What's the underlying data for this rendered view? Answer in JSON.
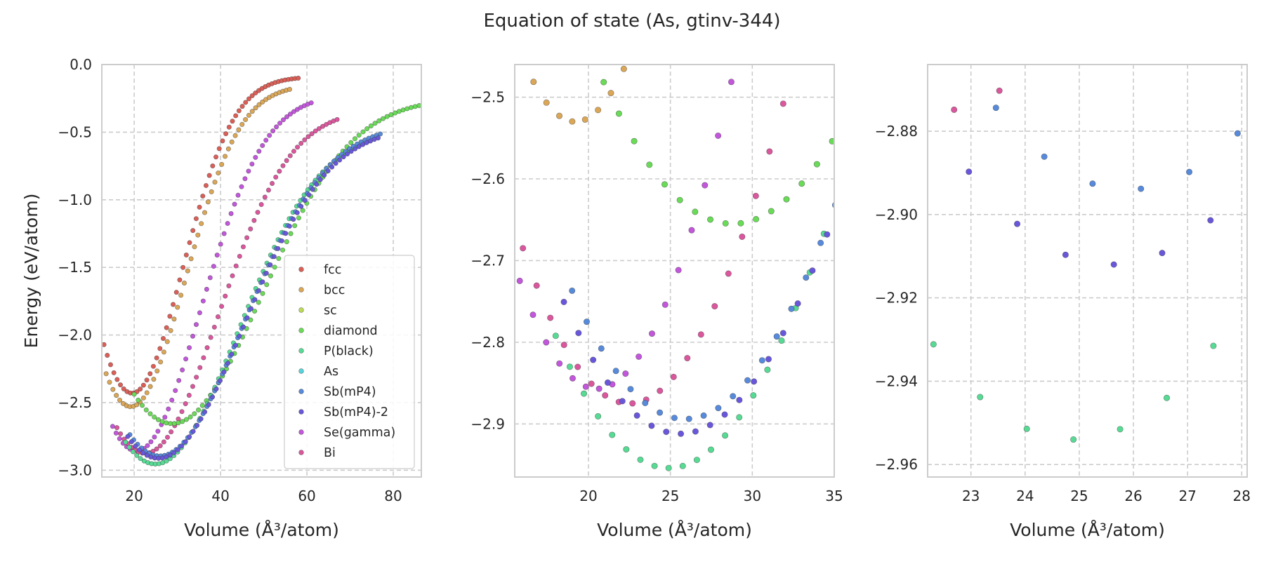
{
  "figure": {
    "title": "Equation of state (As, gtinv-344)"
  },
  "colors": {
    "fcc": "#db5f57",
    "bcc": "#dba757",
    "sc": "#bbdb57",
    "diamond": "#69db57",
    "P(black)": "#57db94",
    "As": "#57d3db",
    "Sb(mP4)": "#578adb",
    "Sb(mP4)-2": "#6957db",
    "Se(gamma)": "#c257db",
    "Bi": "#db579d",
    "grid": "#cccccc",
    "spine": "#cccccc"
  },
  "chart_data": [
    {
      "type": "scatter",
      "title": "",
      "xlabel": "Volume (Å³/atom)",
      "ylabel": "Energy (eV/atom)",
      "xlim": [
        12.5,
        86.5
      ],
      "ylim": [
        -3.05,
        0.0
      ],
      "xticks": [
        20,
        40,
        60,
        80
      ],
      "yticks": [
        0.0,
        -0.5,
        -1.0,
        -1.5,
        -2.0,
        -2.5,
        -3.0
      ],
      "xticklabels": [
        "20",
        "40",
        "60",
        "80"
      ],
      "yticklabels": [
        "0.0",
        "−0.5",
        "−1.0",
        "−1.5",
        "−2.0",
        "−2.5",
        "−3.0"
      ],
      "grid": true,
      "legend": {
        "position": "lower-right",
        "entries": [
          "fcc",
          "bcc",
          "sc",
          "diamond",
          "P(black)",
          "As",
          "Sb(mP4)",
          "Sb(mP4)-2",
          "Se(gamma)",
          "Bi"
        ]
      },
      "series": [
        {
          "name": "fcc",
          "curve": {
            "v0": 19.5,
            "e0": -2.43,
            "b": 0.0085,
            "vmin": 13.0,
            "vmax": 58.0,
            "n": 60,
            "ecap": -0.09
          }
        },
        {
          "name": "bcc",
          "curve": {
            "v0": 19.2,
            "e0": -2.53,
            "b": 0.0075,
            "vmin": 13.5,
            "vmax": 56.0,
            "n": 55,
            "ecap": -0.15
          }
        },
        {
          "name": "Se(gamma)",
          "curve": {
            "v0": 20.5,
            "e0": -2.857,
            "b": 0.006,
            "vmin": 15.0,
            "vmax": 61.0,
            "n": 58,
            "ecap": -0.22
          }
        },
        {
          "name": "Bi",
          "curve": {
            "v0": 22.5,
            "e0": -2.875,
            "b": 0.0045,
            "vmin": 16.0,
            "vmax": 67.0,
            "n": 62,
            "ecap": -0.33
          }
        },
        {
          "name": "diamond",
          "curve": {
            "v0": 28.8,
            "e0": -2.655,
            "b": 0.0028,
            "vmin": 20.0,
            "vmax": 86.0,
            "n": 72,
            "ecap": -0.25
          }
        },
        {
          "name": "P(black)",
          "curve": {
            "v0": 24.9,
            "e0": -2.954,
            "b": 0.0034,
            "vmin": 18.0,
            "vmax": 74.0,
            "n": 66,
            "ecap": -0.48
          }
        },
        {
          "name": "Sb(mP4)",
          "curve": {
            "v0": 25.9,
            "e0": -2.894,
            "b": 0.0033,
            "vmin": 19.0,
            "vmax": 77.0,
            "n": 66,
            "ecap": -0.44
          }
        },
        {
          "name": "Sb(mP4)-2",
          "curve": {
            "v0": 25.6,
            "e0": -2.912,
            "b": 0.0032,
            "vmin": 18.5,
            "vmax": 76.5,
            "n": 66,
            "ecap": -0.46
          }
        }
      ]
    },
    {
      "type": "scatter",
      "title": "",
      "xlabel": "Volume (Å³/atom)",
      "ylabel": "",
      "xlim": [
        15.5,
        35.0
      ],
      "ylim": [
        -2.965,
        -2.46
      ],
      "xticks": [
        20,
        25,
        30,
        35
      ],
      "yticks": [
        -2.5,
        -2.6,
        -2.7,
        -2.8,
        -2.9
      ],
      "xticklabels": [
        "20",
        "25",
        "30",
        "35"
      ],
      "yticklabels": [
        "−2.5",
        "−2.6",
        "−2.7",
        "−2.8",
        "−2.9"
      ],
      "grid": true,
      "series": [
        {
          "name": "bcc",
          "curve": {
            "v0": 19.2,
            "e0": -2.53,
            "b": 0.0075,
            "vmin": 13.5,
            "vmax": 56.0,
            "n": 55,
            "ecap": -0.15
          }
        },
        {
          "name": "Se(gamma)",
          "curve": {
            "v0": 20.5,
            "e0": -2.857,
            "b": 0.006,
            "vmin": 15.0,
            "vmax": 61.0,
            "n": 58,
            "ecap": -0.22
          }
        },
        {
          "name": "Bi",
          "curve": {
            "v0": 22.5,
            "e0": -2.875,
            "b": 0.0045,
            "vmin": 16.0,
            "vmax": 67.0,
            "n": 62,
            "ecap": -0.33
          }
        },
        {
          "name": "diamond",
          "curve": {
            "v0": 28.8,
            "e0": -2.655,
            "b": 0.0028,
            "vmin": 20.0,
            "vmax": 86.0,
            "n": 72,
            "ecap": -0.25
          }
        },
        {
          "name": "P(black)",
          "curve": {
            "v0": 24.9,
            "e0": -2.954,
            "b": 0.0034,
            "vmin": 18.0,
            "vmax": 74.0,
            "n": 66,
            "ecap": -0.48
          }
        },
        {
          "name": "Sb(mP4)",
          "curve": {
            "v0": 25.9,
            "e0": -2.894,
            "b": 0.0033,
            "vmin": 19.0,
            "vmax": 77.0,
            "n": 66,
            "ecap": -0.44
          }
        },
        {
          "name": "Sb(mP4)-2",
          "curve": {
            "v0": 25.6,
            "e0": -2.912,
            "b": 0.0032,
            "vmin": 18.5,
            "vmax": 76.5,
            "n": 66,
            "ecap": -0.46
          }
        }
      ]
    },
    {
      "type": "scatter",
      "title": "",
      "xlabel": "Volume (Å³/atom)",
      "ylabel": "",
      "xlim": [
        22.2,
        28.1
      ],
      "ylim": [
        -2.963,
        -2.864
      ],
      "xticks": [
        23,
        24,
        25,
        26,
        27,
        28
      ],
      "yticks": [
        -2.88,
        -2.9,
        -2.92,
        -2.94,
        -2.96
      ],
      "xticklabels": [
        "23",
        "24",
        "25",
        "26",
        "27",
        "28"
      ],
      "yticklabels": [
        "−2.88",
        "−2.90",
        "−2.92",
        "−2.94",
        "−2.96"
      ],
      "grid": true,
      "series": [
        {
          "name": "P(black)",
          "curve": {
            "v0": 24.9,
            "e0": -2.954,
            "b": 0.0034,
            "vmin": 18.0,
            "vmax": 74.0,
            "n": 66,
            "ecap": -0.48
          }
        },
        {
          "name": "Sb(mP4)",
          "curve": {
            "v0": 25.9,
            "e0": -2.894,
            "b": 0.0033,
            "vmin": 19.0,
            "vmax": 77.0,
            "n": 66,
            "ecap": -0.44
          }
        },
        {
          "name": "Sb(mP4)-2",
          "curve": {
            "v0": 25.6,
            "e0": -2.912,
            "b": 0.0032,
            "vmin": 18.5,
            "vmax": 76.5,
            "n": 66,
            "ecap": -0.46
          }
        },
        {
          "name": "Bi",
          "curve": {
            "v0": 22.5,
            "e0": -2.875,
            "b": 0.0045,
            "vmin": 16.0,
            "vmax": 67.0,
            "n": 62,
            "ecap": -0.33
          }
        }
      ]
    }
  ]
}
